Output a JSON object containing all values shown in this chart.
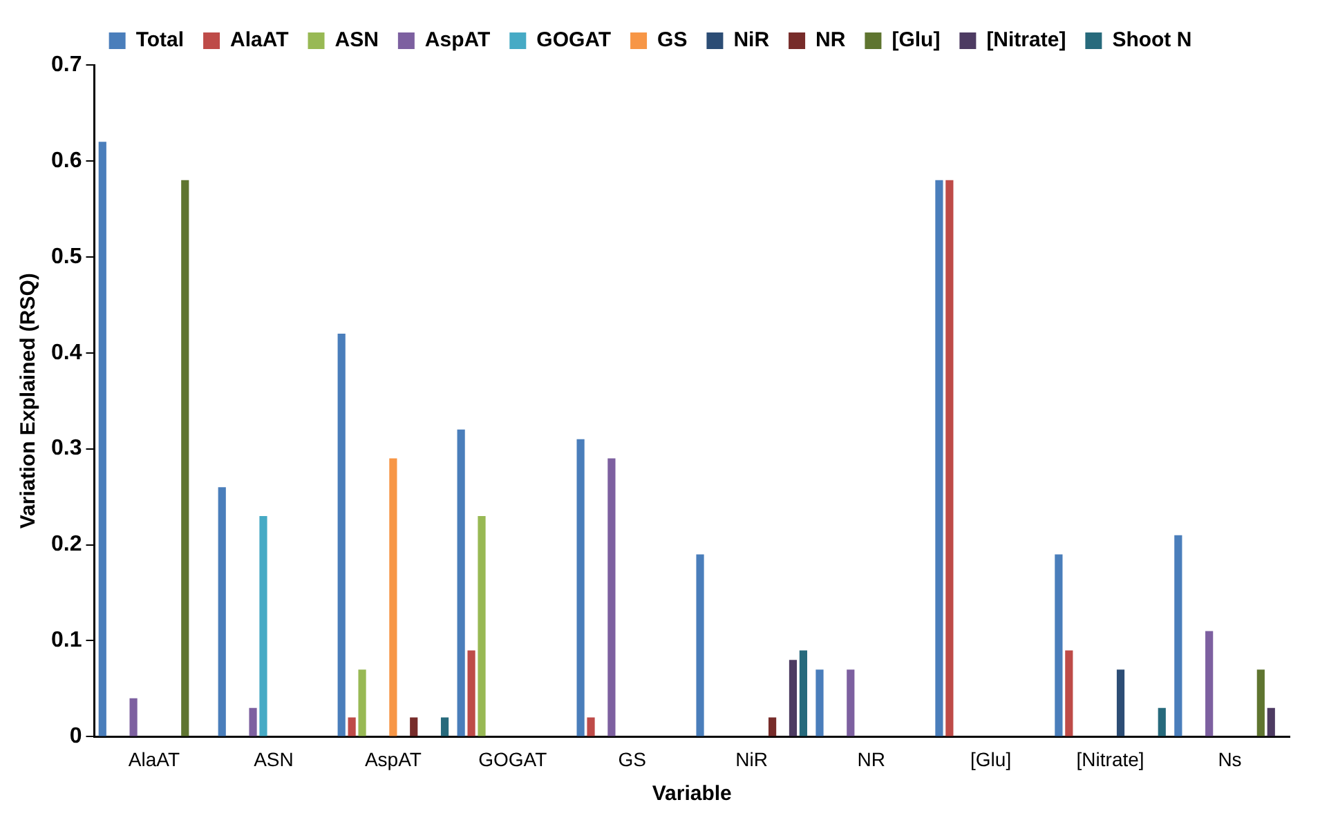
{
  "chart_data": {
    "type": "bar",
    "xlabel": "Variable",
    "ylabel": "Variation Explained (RSQ)",
    "categories": [
      "AlaAT",
      "ASN",
      "AspAT",
      "GOGAT",
      "GS",
      "NiR",
      "NR",
      "[Glu]",
      "[Nitrate]",
      "Ns"
    ],
    "series": [
      {
        "name": "Total",
        "color": "#4a7ebb",
        "values": [
          0.62,
          0.26,
          0.42,
          0.32,
          0.31,
          0.19,
          0.07,
          0.58,
          0.19,
          0.21
        ]
      },
      {
        "name": "AlaAT",
        "color": "#be4b48",
        "values": [
          null,
          null,
          0.02,
          0.09,
          0.02,
          null,
          null,
          0.58,
          0.09,
          null
        ]
      },
      {
        "name": "ASN",
        "color": "#98b954",
        "values": [
          null,
          null,
          0.07,
          0.23,
          null,
          null,
          null,
          null,
          null,
          null
        ]
      },
      {
        "name": "AspAT",
        "color": "#7d60a0",
        "values": [
          0.04,
          0.03,
          null,
          null,
          0.29,
          null,
          0.07,
          null,
          null,
          0.11
        ]
      },
      {
        "name": "GOGAT",
        "color": "#46aac5",
        "values": [
          null,
          0.23,
          null,
          null,
          null,
          null,
          null,
          null,
          null,
          null
        ]
      },
      {
        "name": "GS",
        "color": "#f79646",
        "values": [
          null,
          null,
          0.29,
          null,
          null,
          null,
          null,
          null,
          null,
          null
        ]
      },
      {
        "name": "NiR",
        "color": "#2c4d75",
        "values": [
          null,
          null,
          null,
          null,
          null,
          null,
          null,
          null,
          0.07,
          null
        ]
      },
      {
        "name": "NR",
        "color": "#772c2a",
        "values": [
          null,
          null,
          0.02,
          null,
          null,
          0.02,
          null,
          null,
          null,
          null
        ]
      },
      {
        "name": "[Glu]",
        "color": "#5f7530",
        "values": [
          0.58,
          null,
          null,
          null,
          null,
          null,
          null,
          null,
          null,
          0.07
        ]
      },
      {
        "name": "[Nitrate]",
        "color": "#4d3b62",
        "values": [
          null,
          null,
          null,
          null,
          null,
          0.08,
          null,
          null,
          null,
          0.03
        ]
      },
      {
        "name": "Shoot N",
        "color": "#276a7c",
        "values": [
          null,
          null,
          0.02,
          null,
          null,
          0.09,
          null,
          null,
          0.03,
          null
        ]
      }
    ],
    "ylim": [
      0,
      0.7
    ],
    "yticks": [
      0,
      0.1,
      0.2,
      0.3,
      0.4,
      0.5,
      0.6,
      0.7
    ],
    "grid": false,
    "legend": "top"
  }
}
